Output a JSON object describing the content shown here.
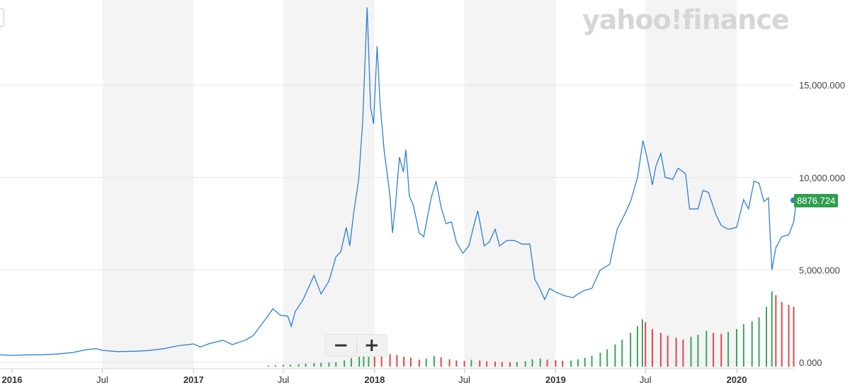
{
  "logo": {
    "text": "yahoo!finance"
  },
  "zoom": {
    "minus_label": "−",
    "plus_label": "+"
  },
  "colors": {
    "line": "#2c7fd8",
    "volume_up": "#3aa55d",
    "volume_down": "#e0474c",
    "band": "#f4f4f4",
    "grid": "#e6e6e6",
    "label_bg": "#2f9e4f"
  },
  "chart_data": {
    "type": "line",
    "title": "",
    "xlabel": "",
    "ylabel": "",
    "ylim": [
      0,
      19600
    ],
    "grid": true,
    "y_axis_position": "right",
    "last_price_label": "8876.724",
    "y_ticks": [
      "0.000",
      "5,000.000",
      "10,000.000",
      "15,000.000"
    ],
    "y_tick_values": [
      0,
      5000,
      10000,
      15000
    ],
    "x_ticks": [
      {
        "label": "2016",
        "date": "2016-01-01",
        "bold": true
      },
      {
        "label": "Jul",
        "date": "2016-07-01",
        "bold": false
      },
      {
        "label": "2017",
        "date": "2017-01-01",
        "bold": true
      },
      {
        "label": "Jul",
        "date": "2017-07-01",
        "bold": false
      },
      {
        "label": "2018",
        "date": "2018-01-01",
        "bold": true
      },
      {
        "label": "Jul",
        "date": "2018-07-01",
        "bold": false
      },
      {
        "label": "2019",
        "date": "2019-01-01",
        "bold": true
      },
      {
        "label": "Jul",
        "date": "2019-07-01",
        "bold": false
      },
      {
        "label": "2020",
        "date": "2020-01-01",
        "bold": true
      }
    ],
    "series": [
      {
        "values": [
          [
            "2015-11-01",
            330
          ],
          [
            "2015-12-01",
            420
          ],
          [
            "2016-01-01",
            380
          ],
          [
            "2016-02-01",
            410
          ],
          [
            "2016-03-01",
            415
          ],
          [
            "2016-04-01",
            450
          ],
          [
            "2016-05-01",
            530
          ],
          [
            "2016-06-01",
            700
          ],
          [
            "2016-06-20",
            740
          ],
          [
            "2016-07-01",
            650
          ],
          [
            "2016-08-01",
            580
          ],
          [
            "2016-09-01",
            600
          ],
          [
            "2016-10-01",
            640
          ],
          [
            "2016-11-01",
            740
          ],
          [
            "2016-12-01",
            900
          ],
          [
            "2017-01-01",
            1000
          ],
          [
            "2017-01-15",
            830
          ],
          [
            "2017-02-01",
            1010
          ],
          [
            "2017-03-01",
            1200
          ],
          [
            "2017-03-20",
            960
          ],
          [
            "2017-04-15",
            1200
          ],
          [
            "2017-05-01",
            1450
          ],
          [
            "2017-05-25",
            2300
          ],
          [
            "2017-06-10",
            2900
          ],
          [
            "2017-06-25",
            2550
          ],
          [
            "2017-07-10",
            2500
          ],
          [
            "2017-07-17",
            1950
          ],
          [
            "2017-07-25",
            2750
          ],
          [
            "2017-08-10",
            3400
          ],
          [
            "2017-08-25",
            4300
          ],
          [
            "2017-09-01",
            4700
          ],
          [
            "2017-09-15",
            3700
          ],
          [
            "2017-10-01",
            4400
          ],
          [
            "2017-10-15",
            5700
          ],
          [
            "2017-10-25",
            6000
          ],
          [
            "2017-11-05",
            7300
          ],
          [
            "2017-11-12",
            6300
          ],
          [
            "2017-11-20",
            8100
          ],
          [
            "2017-11-30",
            9900
          ],
          [
            "2017-12-08",
            13000
          ],
          [
            "2017-12-17",
            19200
          ],
          [
            "2017-12-24",
            13800
          ],
          [
            "2017-12-30",
            12900
          ],
          [
            "2018-01-06",
            17100
          ],
          [
            "2018-01-12",
            14000
          ],
          [
            "2018-01-20",
            11500
          ],
          [
            "2018-02-01",
            9000
          ],
          [
            "2018-02-06",
            7000
          ],
          [
            "2018-02-12",
            8500
          ],
          [
            "2018-02-20",
            11100
          ],
          [
            "2018-02-28",
            10300
          ],
          [
            "2018-03-05",
            11500
          ],
          [
            "2018-03-12",
            9000
          ],
          [
            "2018-03-20",
            8500
          ],
          [
            "2018-04-01",
            7000
          ],
          [
            "2018-04-10",
            6800
          ],
          [
            "2018-04-25",
            8900
          ],
          [
            "2018-05-05",
            9800
          ],
          [
            "2018-05-15",
            8400
          ],
          [
            "2018-05-25",
            7500
          ],
          [
            "2018-06-05",
            7600
          ],
          [
            "2018-06-15",
            6500
          ],
          [
            "2018-06-28",
            5900
          ],
          [
            "2018-07-10",
            6300
          ],
          [
            "2018-07-20",
            7400
          ],
          [
            "2018-07-28",
            8200
          ],
          [
            "2018-08-10",
            6300
          ],
          [
            "2018-08-20",
            6500
          ],
          [
            "2018-09-01",
            7200
          ],
          [
            "2018-09-10",
            6300
          ],
          [
            "2018-09-25",
            6600
          ],
          [
            "2018-10-10",
            6600
          ],
          [
            "2018-10-25",
            6400
          ],
          [
            "2018-11-10",
            6400
          ],
          [
            "2018-11-20",
            4500
          ],
          [
            "2018-11-30",
            4000
          ],
          [
            "2018-12-10",
            3400
          ],
          [
            "2018-12-20",
            4000
          ],
          [
            "2019-01-01",
            3800
          ],
          [
            "2019-01-20",
            3600
          ],
          [
            "2019-02-05",
            3500
          ],
          [
            "2019-02-15",
            3700
          ],
          [
            "2019-03-01",
            3900
          ],
          [
            "2019-03-15",
            4000
          ],
          [
            "2019-04-01",
            5000
          ],
          [
            "2019-04-20",
            5300
          ],
          [
            "2019-05-05",
            7200
          ],
          [
            "2019-05-20",
            8000
          ],
          [
            "2019-06-01",
            8700
          ],
          [
            "2019-06-15",
            10000
          ],
          [
            "2019-06-26",
            12000
          ],
          [
            "2019-07-05",
            11000
          ],
          [
            "2019-07-15",
            9600
          ],
          [
            "2019-07-22",
            10600
          ],
          [
            "2019-08-01",
            11300
          ],
          [
            "2019-08-10",
            10000
          ],
          [
            "2019-08-25",
            9900
          ],
          [
            "2019-09-05",
            10500
          ],
          [
            "2019-09-20",
            10200
          ],
          [
            "2019-09-28",
            8300
          ],
          [
            "2019-10-15",
            8300
          ],
          [
            "2019-10-25",
            9300
          ],
          [
            "2019-11-05",
            9200
          ],
          [
            "2019-11-20",
            8000
          ],
          [
            "2019-12-01",
            7400
          ],
          [
            "2019-12-15",
            7200
          ],
          [
            "2020-01-01",
            7300
          ],
          [
            "2020-01-15",
            8800
          ],
          [
            "2020-01-25",
            8300
          ],
          [
            "2020-02-05",
            9800
          ],
          [
            "2020-02-15",
            9700
          ],
          [
            "2020-02-25",
            8700
          ],
          [
            "2020-03-05",
            8900
          ],
          [
            "2020-03-12",
            5000
          ],
          [
            "2020-03-20",
            6200
          ],
          [
            "2020-04-01",
            6800
          ],
          [
            "2020-04-15",
            6900
          ],
          [
            "2020-04-25",
            7600
          ],
          [
            "2020-05-01",
            8877
          ]
        ]
      }
    ],
    "volume": [
      [
        "2017-06-01",
        60
      ],
      [
        "2017-06-15",
        80
      ],
      [
        "2017-07-01",
        90
      ],
      [
        "2017-07-15",
        110
      ],
      [
        "2017-08-01",
        130
      ],
      [
        "2017-08-15",
        160
      ],
      [
        "2017-09-01",
        190
      ],
      [
        "2017-09-15",
        200
      ],
      [
        "2017-10-01",
        210
      ],
      [
        "2017-10-15",
        230
      ],
      [
        "2017-11-01",
        320
      ],
      [
        "2017-11-15",
        440
      ],
      [
        "2017-12-01",
        580
      ],
      [
        "2017-12-10",
        700
      ],
      [
        "2017-12-20",
        760
      ],
      [
        "2018-01-01",
        720
      ],
      [
        "2018-01-15",
        680
      ],
      [
        "2018-02-01",
        650
      ],
      [
        "2018-02-15",
        600
      ],
      [
        "2018-03-01",
        520
      ],
      [
        "2018-03-15",
        460
      ],
      [
        "2018-04-01",
        360
      ],
      [
        "2018-04-15",
        420
      ],
      [
        "2018-05-01",
        560
      ],
      [
        "2018-05-15",
        480
      ],
      [
        "2018-06-01",
        380
      ],
      [
        "2018-06-15",
        320
      ],
      [
        "2018-07-01",
        300
      ],
      [
        "2018-07-15",
        350
      ],
      [
        "2018-08-01",
        320
      ],
      [
        "2018-08-15",
        280
      ],
      [
        "2018-09-01",
        260
      ],
      [
        "2018-09-15",
        240
      ],
      [
        "2018-10-01",
        230
      ],
      [
        "2018-10-15",
        240
      ],
      [
        "2018-11-01",
        280
      ],
      [
        "2018-11-15",
        380
      ],
      [
        "2018-12-01",
        420
      ],
      [
        "2018-12-15",
        360
      ],
      [
        "2019-01-01",
        330
      ],
      [
        "2019-01-15",
        300
      ],
      [
        "2019-02-01",
        320
      ],
      [
        "2019-02-15",
        380
      ],
      [
        "2019-03-01",
        460
      ],
      [
        "2019-03-15",
        560
      ],
      [
        "2019-04-01",
        720
      ],
      [
        "2019-04-15",
        900
      ],
      [
        "2019-05-01",
        1150
      ],
      [
        "2019-05-15",
        1400
      ],
      [
        "2019-06-01",
        1750
      ],
      [
        "2019-06-15",
        2100
      ],
      [
        "2019-06-25",
        2450
      ],
      [
        "2019-07-01",
        2300
      ],
      [
        "2019-07-15",
        1950
      ],
      [
        "2019-08-01",
        1750
      ],
      [
        "2019-08-15",
        1600
      ],
      [
        "2019-09-01",
        1500
      ],
      [
        "2019-09-15",
        1400
      ],
      [
        "2019-10-01",
        1550
      ],
      [
        "2019-10-15",
        1650
      ],
      [
        "2019-11-01",
        1850
      ],
      [
        "2019-11-15",
        1750
      ],
      [
        "2019-12-01",
        1700
      ],
      [
        "2019-12-15",
        1800
      ],
      [
        "2020-01-01",
        1950
      ],
      [
        "2020-01-15",
        2200
      ],
      [
        "2020-02-01",
        2350
      ],
      [
        "2020-02-15",
        2550
      ],
      [
        "2020-03-01",
        3100
      ],
      [
        "2020-03-12",
        3900
      ],
      [
        "2020-03-20",
        3700
      ],
      [
        "2020-04-01",
        3350
      ],
      [
        "2020-04-15",
        3200
      ],
      [
        "2020-04-25",
        3100
      ]
    ]
  }
}
